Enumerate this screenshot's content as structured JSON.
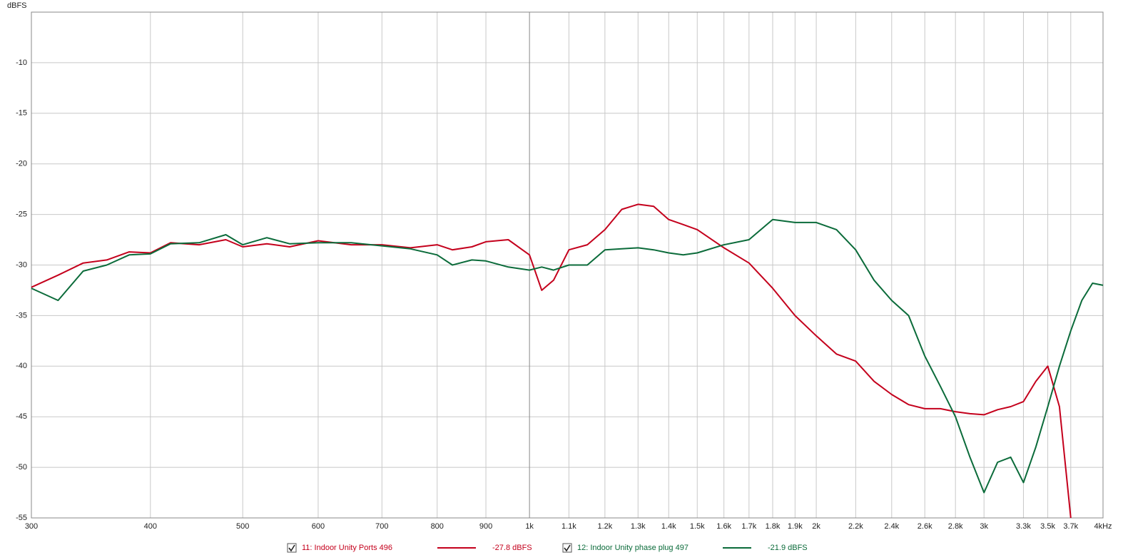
{
  "chart_data": {
    "type": "line",
    "y_label": "dBFS",
    "x_scale": "log",
    "grid": true,
    "xlim": [
      300,
      4000
    ],
    "ylim": [
      -55,
      -5
    ],
    "yticks": [
      -10,
      -15,
      -20,
      -25,
      -30,
      -35,
      -40,
      -45,
      -50,
      -55
    ],
    "xticks": [
      300,
      400,
      500,
      600,
      700,
      800,
      900,
      {
        "value": 1000,
        "label": "1k"
      },
      {
        "value": 1100,
        "label": "1.1k"
      },
      {
        "value": 1200,
        "label": "1.2k"
      },
      {
        "value": 1300,
        "label": "1.3k"
      },
      {
        "value": 1400,
        "label": "1.4k"
      },
      {
        "value": 1500,
        "label": "1.5k"
      },
      {
        "value": 1600,
        "label": "1.6k"
      },
      {
        "value": 1700,
        "label": "1.7k"
      },
      {
        "value": 1800,
        "label": "1.8k"
      },
      {
        "value": 1900,
        "label": "1.9k"
      },
      {
        "value": 2000,
        "label": "2k"
      },
      {
        "value": 2200,
        "label": "2.2k"
      },
      {
        "value": 2400,
        "label": "2.4k"
      },
      {
        "value": 2600,
        "label": "2.6k"
      },
      {
        "value": 2800,
        "label": "2.8k"
      },
      {
        "value": 3000,
        "label": "3k"
      },
      {
        "value": 3300,
        "label": "3.3k"
      },
      {
        "value": 3500,
        "label": "3.5k"
      },
      {
        "value": 3700,
        "label": "3.7k"
      },
      {
        "value": 4000,
        "label": "4kHz"
      }
    ],
    "x": [
      300,
      320,
      340,
      360,
      380,
      400,
      420,
      450,
      480,
      500,
      530,
      560,
      600,
      650,
      700,
      750,
      800,
      830,
      870,
      900,
      950,
      1000,
      1030,
      1060,
      1100,
      1150,
      1200,
      1250,
      1300,
      1350,
      1400,
      1450,
      1500,
      1600,
      1700,
      1800,
      1900,
      2000,
      2100,
      2200,
      2300,
      2400,
      2500,
      2600,
      2700,
      2800,
      2900,
      3000,
      3100,
      3200,
      3300,
      3400,
      3500,
      3600,
      3700,
      3800,
      3900,
      4000
    ],
    "series": [
      {
        "name": "11: Indoor Unity Ports 496",
        "level": "-27.8 dBFS",
        "color": "#c4001c",
        "values": [
          -32.2,
          -31.0,
          -29.8,
          -29.5,
          -28.7,
          -28.8,
          -27.8,
          -28.0,
          -27.5,
          -28.2,
          -27.9,
          -28.2,
          -27.6,
          -28.0,
          -28.0,
          -28.3,
          -28.0,
          -28.5,
          -28.2,
          -27.7,
          -27.5,
          -29.0,
          -32.5,
          -31.5,
          -28.5,
          -28.0,
          -26.5,
          -24.5,
          -24.0,
          -24.2,
          -25.5,
          -26.0,
          -26.5,
          -28.3,
          -29.8,
          -32.3,
          -35.0,
          -37.0,
          -38.8,
          -39.5,
          -41.5,
          -42.8,
          -43.8,
          -44.2,
          -44.2,
          -44.5,
          -44.7,
          -44.8,
          -44.3,
          -44.0,
          -43.5,
          -41.5,
          -40.0,
          -44.0,
          -55,
          null,
          null,
          null
        ]
      },
      {
        "name": "12: Indoor Unity phase plug 497",
        "level": "-21.9 dBFS",
        "color": "#0b6b3a",
        "values": [
          -32.3,
          -33.5,
          -30.6,
          -30.0,
          -29.0,
          -28.9,
          -27.9,
          -27.8,
          -27.0,
          -28.0,
          -27.3,
          -27.9,
          -27.8,
          -27.8,
          -28.1,
          -28.4,
          -29.0,
          -30.0,
          -29.5,
          -29.6,
          -30.2,
          -30.5,
          -30.2,
          -30.5,
          -30.0,
          -30.0,
          -28.5,
          -28.4,
          -28.3,
          -28.5,
          -28.8,
          -29.0,
          -28.8,
          -28.0,
          -27.5,
          -25.5,
          -25.8,
          -25.8,
          -26.5,
          -28.5,
          -31.5,
          -33.5,
          -35.0,
          -39.0,
          -42.0,
          -45.0,
          -49.0,
          -52.5,
          -49.5,
          -49.0,
          -51.5,
          -48.0,
          -44.0,
          -40.0,
          -36.5,
          -33.5,
          -31.8,
          -32.0
        ]
      }
    ]
  }
}
